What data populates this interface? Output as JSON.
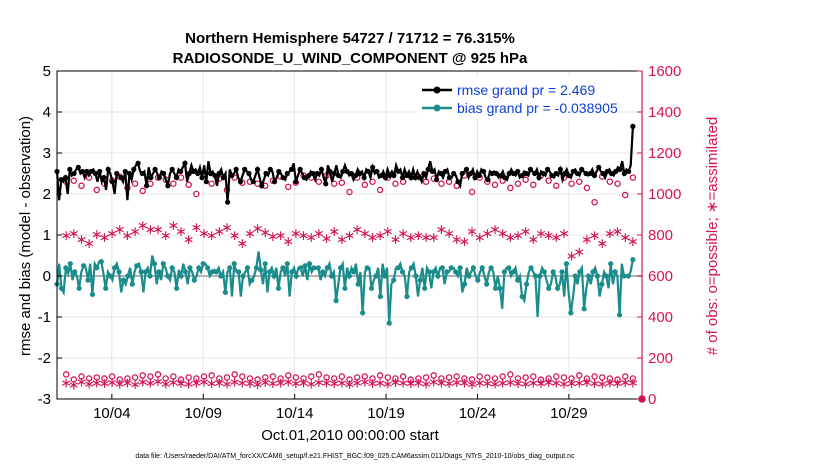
{
  "chart_data": {
    "type": "line",
    "title": "Northern Hemisphere 54727 / 71712 = 76.315%",
    "subtitle": "RADIOSONDE_U_WIND_COMPONENT @ 925 hPa",
    "xlabel": "Oct.01,2010 00:00:00 start",
    "ylabel_left": "rmse and bias (model - observation)",
    "ylabel_right": "# of obs: o=possible; ∗=assimilated",
    "footer": "data file: /Users/raeder/DAI/ATM_forcXX/CAM6_setup/f.e21.FHIST_BGC.f09_025.CAM6assim.011/Diags_NTrS_2010-10/obs_diag_output.nc",
    "xlim": [
      1,
      33
    ],
    "ylim_left": [
      -3,
      5
    ],
    "ylim_right": [
      0,
      1600
    ],
    "x_ticks": [
      4,
      9,
      14,
      19,
      24,
      29
    ],
    "x_ticklabels": [
      "10/04",
      "10/09",
      "10/14",
      "10/19",
      "10/24",
      "10/29"
    ],
    "y_ticks_left": [
      -3,
      -2,
      -1,
      0,
      1,
      2,
      3,
      4,
      5
    ],
    "y_ticks_right": [
      0,
      200,
      400,
      600,
      800,
      1000,
      1200,
      1400,
      1600
    ],
    "grid": true,
    "colors": {
      "rmse": "#000000",
      "bias": "#1a8c8c",
      "obs": "#d4145a",
      "legend_text": "#0b3fd6",
      "zero_line": "#b4b4b4"
    },
    "series": [
      {
        "name": "rmse grand pr = 2.469",
        "axis": "left",
        "values": [
          2.55,
          1.85,
          2.35,
          2.3,
          2.4,
          2.0,
          2.6,
          2.45,
          2.5,
          2.6,
          2.65,
          2.5,
          2.55,
          2.4,
          2.55,
          2.45,
          2.55,
          2.6,
          2.5,
          2.3,
          2.55,
          2.3,
          2.4,
          2.1,
          2.6,
          2.5,
          2.3,
          2.0,
          2.5,
          2.45,
          2.4,
          2.3,
          2.55,
          1.85,
          2.5,
          2.35,
          2.6,
          2.7,
          2.75,
          2.55,
          2.5,
          2.55,
          2.2,
          2.65,
          2.4,
          2.5,
          2.6,
          2.5,
          2.4,
          2.55,
          2.5,
          2.35,
          2.2,
          2.5,
          2.6,
          2.5,
          2.4,
          2.6,
          2.55,
          2.65,
          2.75,
          2.3,
          2.5,
          2.7,
          2.55,
          2.6,
          2.5,
          2.65,
          2.4,
          2.7,
          2.3,
          2.8,
          2.5,
          2.55,
          2.45,
          2.2,
          2.5,
          2.6,
          2.4,
          2.5,
          1.8,
          2.6,
          2.45,
          2.5,
          2.6,
          2.4,
          2.3,
          2.45,
          2.6,
          2.55,
          2.5,
          2.35,
          2.3,
          2.45,
          2.6,
          2.4,
          2.2,
          2.35,
          2.5,
          2.45,
          2.6,
          2.55,
          2.3,
          2.4,
          2.55,
          2.5,
          2.4,
          2.35,
          2.5,
          2.55,
          2.6,
          2.75,
          2.3,
          2.45,
          2.6,
          2.5,
          2.4,
          2.35,
          2.45,
          2.55,
          2.5,
          2.35,
          2.5,
          2.45,
          2.6,
          2.4,
          2.25,
          2.7,
          2.55,
          2.3,
          2.5,
          2.7,
          2.45,
          2.4,
          2.55,
          2.7,
          2.55,
          2.45,
          2.5,
          2.35,
          2.45,
          2.6,
          2.5,
          2.55,
          2.4,
          2.6,
          2.55,
          2.4,
          2.65,
          2.5,
          2.55,
          2.4,
          2.45,
          2.55,
          2.4,
          2.6,
          2.45,
          2.55,
          2.45,
          2.7,
          2.55,
          2.6,
          2.4,
          2.6,
          2.45,
          2.55,
          2.4,
          2.6,
          2.4,
          2.55,
          2.4,
          2.3,
          2.5,
          2.4,
          2.6,
          2.8,
          2.55,
          2.6,
          2.35,
          2.55,
          2.5,
          2.4,
          2.55,
          2.6,
          2.4,
          2.4,
          2.5,
          2.45,
          2.3,
          2.2,
          2.5,
          2.55,
          2.6,
          2.4,
          2.5,
          2.6,
          2.4,
          2.55,
          2.45,
          2.6,
          2.55,
          2.4,
          2.35,
          2.55,
          2.5,
          2.55,
          2.5,
          2.4,
          2.45,
          2.55,
          2.4,
          2.35,
          2.5,
          2.6,
          2.5,
          2.45,
          2.55,
          2.4,
          2.45,
          2.55,
          2.5,
          2.45,
          2.6,
          2.55,
          2.5,
          2.6,
          2.4,
          2.55,
          2.5,
          2.45,
          2.6,
          2.55,
          2.45,
          2.4,
          2.5,
          2.45,
          2.6,
          2.35,
          2.5,
          2.6,
          2.45,
          2.4,
          2.55,
          2.6,
          2.5,
          2.45,
          2.6,
          2.55,
          2.5,
          2.45,
          2.5,
          2.6,
          2.45,
          2.55,
          2.65,
          2.55,
          2.5,
          2.4,
          2.55,
          2.6,
          2.5,
          2.45,
          2.55,
          2.65,
          2.6,
          2.8,
          2.5,
          2.6,
          2.55,
          2.7,
          3.65
        ]
      },
      {
        "name": "bias grand pr = -0.038905",
        "axis": "left",
        "values": [
          -0.2,
          0.3,
          -0.3,
          -0.4,
          0.2,
          0.05,
          0.3,
          -0.1,
          0.1,
          0.0,
          -0.3,
          0.1,
          0.25,
          0.2,
          -0.1,
          0.3,
          -0.45,
          0.3,
          0.2,
          0.35,
          0.35,
          0.05,
          -0.3,
          0.1,
          0.0,
          -0.1,
          0.2,
          0.3,
          0.1,
          -0.4,
          -0.1,
          -0.2,
          0.0,
          0.2,
          -0.2,
          0.1,
          0.25,
          0.3,
          0.1,
          -0.4,
          0.1,
          0.2,
          0.0,
          0.5,
          0.3,
          -0.2,
          0.1,
          -0.1,
          0.3,
          0.2,
          0.0,
          -0.1,
          0.2,
          0.1,
          -0.3,
          0.15,
          0.0,
          0.3,
          0.1,
          -0.2,
          0.2,
          0.1,
          -0.1,
          0.0,
          0.2,
          0.1,
          0.3,
          0.3,
          0.2,
          0.0,
          0.1,
          0.15,
          0.1,
          0.2,
          0.0,
          0.1,
          -0.4,
          0.1,
          0.2,
          -0.5,
          0.3,
          0.1,
          0.1,
          -0.5,
          0.0,
          0.1,
          0.2,
          -0.2,
          -0.1,
          0.0,
          0.2,
          0.6,
          0.15,
          -0.2,
          0.3,
          -0.4,
          0.1,
          0.2,
          0.0,
          0.2,
          -0.3,
          0.1,
          0.2,
          0.0,
          0.3,
          -0.5,
          0.1,
          0.2,
          0.0,
          0.2,
          0.2,
          0.0,
          0.25,
          -0.1,
          0.3,
          0.1,
          0.2,
          0.2,
          0.2,
          -0.1,
          0.1,
          0.0,
          0.2,
          0.3,
          0.0,
          0.1,
          -0.6,
          -0.2,
          0.2,
          0.3,
          -0.3,
          0.2,
          0.0,
          0.2,
          0.1,
          0.3,
          -0.2,
          0.1,
          -0.9,
          0.1,
          0.2,
          0.2,
          -0.3,
          -0.1,
          0.0,
          0.2,
          -0.5,
          0.3,
          0.0,
          0.2,
          -1.15,
          -0.2,
          -0.1,
          0.2,
          0.2,
          0.3,
          0.1,
          0.0,
          -0.5,
          0.1,
          0.2,
          0.3,
          0.0,
          -0.5,
          -0.1,
          0.2,
          -0.3,
          0.2,
          0.1,
          -0.3,
          0.1,
          0.2,
          0.0,
          0.2,
          0.2,
          -0.2,
          0.1,
          0.1,
          0.2,
          0.2,
          0.1,
          0.0,
          0.2,
          -0.4,
          -0.2,
          0.2,
          0.0,
          0.1,
          0.2,
          0.0,
          -0.1,
          0.1,
          0.2,
          0.0,
          -0.2,
          0.1,
          0.2,
          0.1,
          -0.3,
          0.0,
          -0.3,
          -0.8,
          0.1,
          0.2,
          0.2,
          0.0,
          0.1,
          0.2,
          -0.1,
          0.0,
          -0.5,
          -0.6,
          -0.2,
          0.1,
          0.2,
          0.1,
          0.0,
          -1.0,
          0.0,
          0.2,
          0.1,
          -0.1,
          -0.3,
          -0.2,
          0.1,
          0.0,
          -0.3,
          -0.2,
          0.1,
          -0.5,
          0.3,
          -0.4,
          -0.9,
          -0.5,
          0.0,
          -0.2,
          0.1,
          0.2,
          -0.8,
          -0.3,
          0.0,
          -0.2,
          0.1,
          0.2,
          0.0,
          -0.5,
          -0.2,
          0.1,
          0.0,
          -0.3,
          0.3,
          -0.2,
          0.1,
          0.0,
          -0.95,
          0.3,
          0.0,
          0.0,
          0.0,
          0.1,
          0.4
        ]
      },
      {
        "name": "possible",
        "axis": "right",
        "marker": "o",
        "values": [
          1060,
          1065,
          1040,
          1080,
          1020,
          1050,
          1065,
          1085,
          1030,
          1050,
          1015,
          1050,
          1080,
          1070,
          1050,
          1080,
          1045,
          1000,
          1090,
          1050,
          1075,
          1020,
          1080,
          1055,
          1060,
          1050,
          1040,
          1065,
          1085,
          1035,
          1055,
          1090,
          1080,
          1060,
          1090,
          1050,
          1055,
          1010,
          1080,
          1045,
          1060,
          1020,
          1080,
          1050,
          1060,
          1090,
          1085,
          1060,
          1075,
          1050,
          1060,
          1040,
          1090,
          1010,
          1080,
          1060,
          1045,
          1065,
          1030,
          1050,
          1070,
          1045,
          1090,
          1065,
          1040,
          1080,
          1050,
          1060,
          1030,
          960,
          1085,
          1060,
          1050,
          995,
          1080
        ]
      },
      {
        "name": "assimilated",
        "axis": "right",
        "marker": "*",
        "values": [
          800,
          810,
          780,
          760,
          805,
          790,
          810,
          830,
          800,
          820,
          850,
          830,
          830,
          800,
          850,
          820,
          780,
          840,
          810,
          800,
          820,
          840,
          800,
          760,
          810,
          835,
          815,
          795,
          800,
          770,
          810,
          800,
          790,
          810,
          785,
          820,
          780,
          800,
          830,
          810,
          790,
          800,
          820,
          780,
          810,
          790,
          800,
          790,
          790,
          830,
          810,
          780,
          770,
          820,
          790,
          810,
          830,
          810,
          790,
          800,
          820,
          780,
          810,
          800,
          790,
          810,
          700,
          720,
          780,
          800,
          760,
          810,
          820,
          790,
          770
        ]
      },
      {
        "name": "possible_low",
        "axis": "right",
        "marker": "o",
        "values": [
          120,
          95,
          110,
          100,
          105,
          100,
          110,
          95,
          100,
          105,
          115,
          110,
          120,
          100,
          110,
          95,
          105,
          100,
          110,
          115,
          100,
          105,
          120,
          110,
          100,
          95,
          105,
          110,
          100,
          115,
          105,
          100,
          110,
          120,
          105,
          100,
          110,
          95,
          105,
          110,
          100,
          115,
          105,
          100,
          110,
          95,
          100,
          105,
          115,
          100,
          105,
          110,
          100,
          95,
          110,
          105,
          100,
          110,
          120,
          100,
          105,
          110,
          95,
          100,
          110,
          105,
          100,
          115,
          100,
          110,
          105,
          100,
          95,
          110,
          100
        ]
      },
      {
        "name": "assimilated_low",
        "axis": "right",
        "marker": "*",
        "values": [
          80,
          70,
          85,
          75,
          80,
          78,
          82,
          76,
          80,
          74,
          85,
          80,
          88,
          76,
          82,
          79,
          75,
          80,
          85,
          78,
          80,
          76,
          85,
          80,
          78,
          74,
          82,
          79,
          80,
          85,
          78,
          80,
          76,
          82,
          80,
          78,
          80,
          74,
          80,
          85,
          78,
          80,
          76,
          82,
          80,
          78,
          80,
          76,
          85,
          80,
          78,
          82,
          80,
          74,
          80,
          78,
          76,
          80,
          82,
          79,
          76,
          80,
          78,
          82,
          80,
          76,
          78,
          80,
          82,
          79,
          76,
          80,
          78,
          82,
          80
        ]
      }
    ],
    "legend_location": "top-right",
    "right_axis_end_marker": 0
  }
}
